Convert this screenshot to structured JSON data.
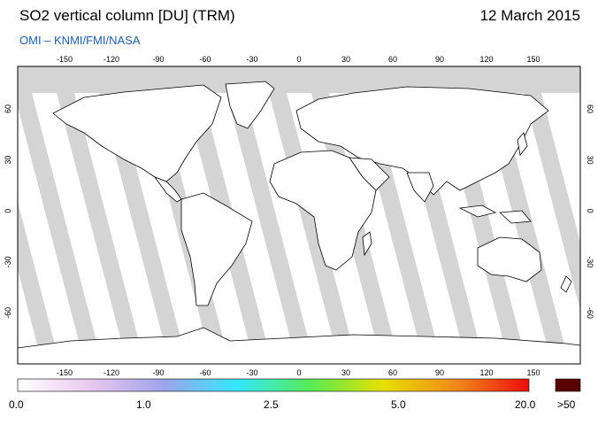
{
  "header": {
    "title": "SO2 vertical column [DU] (TRM)",
    "date": "12 March 2015",
    "source": "OMI  –  KNMI/FMI/NASA"
  },
  "map": {
    "lon_ticks": [
      "-150",
      "-120",
      "-90",
      "-60",
      "-30",
      "0",
      "30",
      "60",
      "90",
      "120",
      "150"
    ],
    "lon_values": [
      -150,
      -120,
      -90,
      -60,
      -30,
      0,
      30,
      60,
      90,
      120,
      150
    ],
    "lat_ticks": [
      "60",
      "30",
      "0",
      "-30",
      "-60"
    ],
    "lat_values": [
      60,
      30,
      0,
      -30,
      -60
    ],
    "land_color": "#ffffff",
    "swath_gap_color": "#d4d4d4",
    "missing_color": "#a9a9a9"
  },
  "colorbar": {
    "labels": [
      "0.0",
      "1.0",
      "2.5",
      "5.0",
      "20.0"
    ],
    "over_label": ">50",
    "over_color": "#5a0000",
    "stops": [
      "#ffffff",
      "#e9c8ef",
      "#9ea3ea",
      "#34e6ff",
      "#55ec55",
      "#e6e000",
      "#f08a1a",
      "#ee0d0d"
    ]
  }
}
